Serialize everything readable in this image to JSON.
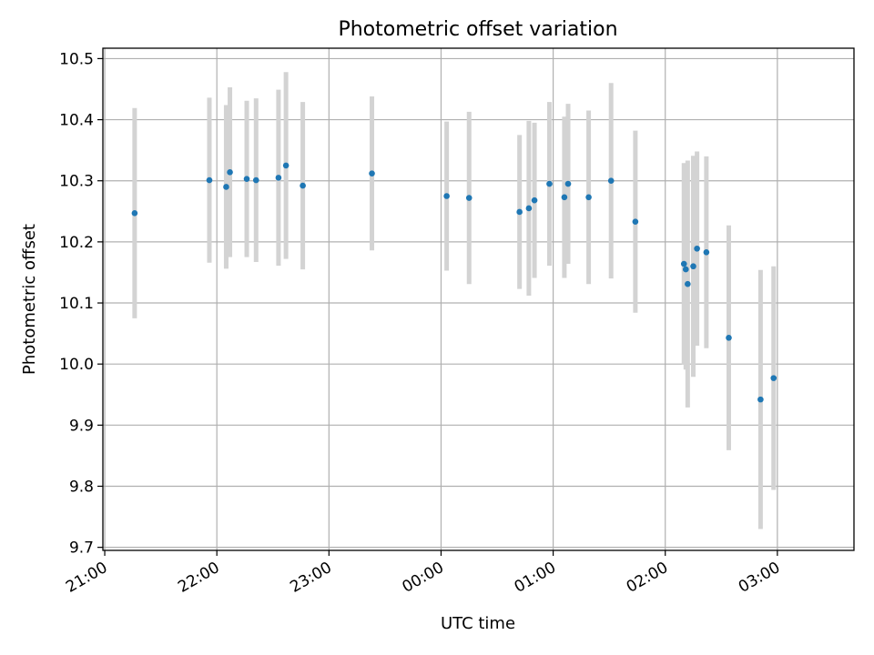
{
  "chart_data": {
    "type": "scatter",
    "title": "Photometric offset variation",
    "xlabel": "UTC time",
    "ylabel": "Photometric offset",
    "x_ticks": [
      "21:00",
      "22:00",
      "23:00",
      "00:00",
      "01:00",
      "02:00",
      "03:00"
    ],
    "y_ticks": [
      "9.7",
      "9.8",
      "9.9",
      "10.0",
      "10.1",
      "10.2",
      "10.3",
      "10.4",
      "10.5"
    ],
    "xlim": [
      "20:59",
      "03:41"
    ],
    "ylim": [
      9.695,
      10.517
    ],
    "grid": true,
    "legend": "none",
    "point_color": "#1f77b4",
    "errorbar_color": "#d3d3d3",
    "points": [
      {
        "x": "21:16",
        "y": 10.247,
        "err": 0.172
      },
      {
        "x": "21:56",
        "y": 10.301,
        "err": 0.135
      },
      {
        "x": "22:05",
        "y": 10.29,
        "err": 0.134
      },
      {
        "x": "22:07",
        "y": 10.314,
        "err": 0.139
      },
      {
        "x": "22:16",
        "y": 10.303,
        "err": 0.128
      },
      {
        "x": "22:21",
        "y": 10.301,
        "err": 0.134
      },
      {
        "x": "22:33",
        "y": 10.305,
        "err": 0.144
      },
      {
        "x": "22:37",
        "y": 10.325,
        "err": 0.153
      },
      {
        "x": "22:46",
        "y": 10.292,
        "err": 0.137
      },
      {
        "x": "23:23",
        "y": 10.312,
        "err": 0.126
      },
      {
        "x": "00:03",
        "y": 10.275,
        "err": 0.122
      },
      {
        "x": "00:15",
        "y": 10.272,
        "err": 0.141
      },
      {
        "x": "00:42",
        "y": 10.249,
        "err": 0.126
      },
      {
        "x": "00:47",
        "y": 10.255,
        "err": 0.143
      },
      {
        "x": "00:50",
        "y": 10.268,
        "err": 0.127
      },
      {
        "x": "00:58",
        "y": 10.295,
        "err": 0.134
      },
      {
        "x": "01:06",
        "y": 10.273,
        "err": 0.132
      },
      {
        "x": "01:08",
        "y": 10.295,
        "err": 0.131
      },
      {
        "x": "01:19",
        "y": 10.273,
        "err": 0.142
      },
      {
        "x": "01:31",
        "y": 10.3,
        "err": 0.16
      },
      {
        "x": "01:44",
        "y": 10.233,
        "err": 0.149
      },
      {
        "x": "02:10",
        "y": 10.164,
        "err": 0.165
      },
      {
        "x": "02:11",
        "y": 10.155,
        "err": 0.164
      },
      {
        "x": "02:12",
        "y": 10.131,
        "err": 0.202
      },
      {
        "x": "02:15",
        "y": 10.16,
        "err": 0.181
      },
      {
        "x": "02:17",
        "y": 10.189,
        "err": 0.159
      },
      {
        "x": "02:22",
        "y": 10.183,
        "err": 0.157
      },
      {
        "x": "02:34",
        "y": 10.043,
        "err": 0.184
      },
      {
        "x": "02:51",
        "y": 9.942,
        "err": 0.212
      },
      {
        "x": "02:58",
        "y": 9.977,
        "err": 0.183
      }
    ]
  }
}
